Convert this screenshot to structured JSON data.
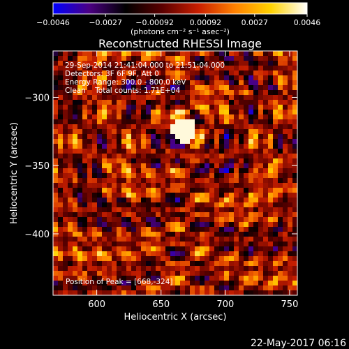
{
  "chart_data": {
    "type": "heatmap",
    "title": "Reconstructed RHESSI Image",
    "xlabel": "Heliocentric X (arcsec)",
    "ylabel": "Heliocentric Y (arcsec)",
    "xlim": [
      566,
      756
    ],
    "ylim": [
      -445,
      -266
    ],
    "x_ticks": [
      {
        "value": 600,
        "label": "600"
      },
      {
        "value": 650,
        "label": "650"
      },
      {
        "value": 700,
        "label": "700"
      },
      {
        "value": 750,
        "label": "750"
      }
    ],
    "y_ticks": [
      {
        "value": -300,
        "label": "−300"
      },
      {
        "value": -350,
        "label": "−350"
      },
      {
        "value": -400,
        "label": "−400"
      }
    ],
    "colorbar": {
      "min": -0.0046,
      "max": 0.0046,
      "ticks": [
        {
          "value": -0.0046,
          "label": "−0.0046"
        },
        {
          "value": -0.0027,
          "label": "−0.0027"
        },
        {
          "value": -0.00092,
          "label": "−0.00092"
        },
        {
          "value": 0.00092,
          "label": "0.00092"
        },
        {
          "value": 0.0027,
          "label": "0.0027"
        },
        {
          "value": 0.0046,
          "label": "0.0046"
        }
      ],
      "unit_label": "(photons cm⁻² s⁻¹ asec⁻²)",
      "colormap": [
        "#0000ff",
        "#4b0082",
        "#000000",
        "#5a0000",
        "#c81e00",
        "#ff8000",
        "#ffd200",
        "#ffffff"
      ]
    },
    "annotations": [
      "29-Sep-2014 21:41:04.000 to 21:51:04.000",
      "Detectors: 3F 6F 9F, Att 0",
      "Energy Range: 300.0 - 800.0 keV",
      "Clean    Total counts: 1.71E+04"
    ],
    "peak_label": "Position of Peak = [668,-324]",
    "peak": [
      668,
      -324
    ],
    "grid": false
  },
  "footer_timestamp": "22-May-2017 06:16"
}
